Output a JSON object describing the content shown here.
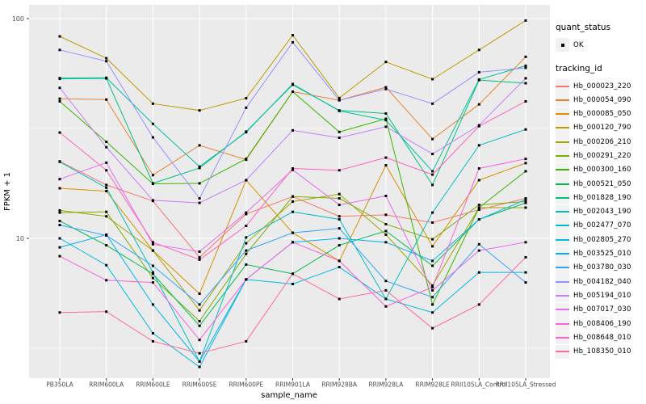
{
  "legend": {
    "quant_status": {
      "title": "quant_status",
      "items": [
        {
          "label": "OK",
          "marker": "black-square"
        }
      ]
    },
    "tracking": {
      "title": "tracking_id"
    }
  },
  "chart_data": {
    "type": "line",
    "title": "",
    "xlabel": "sample_name",
    "ylabel": "FPKM + 1",
    "y_scale": "log10",
    "ylim": [
      2.3,
      116
    ],
    "grid": true,
    "legend_position": "right",
    "panel_bg": "#EBEBEB",
    "gridline_color": "#FFFFFF",
    "tick_text_color": "#4D4D4D",
    "point_marker": {
      "shape": "square",
      "color": "#000000"
    },
    "y_ticks": [
      {
        "value": 100,
        "label": "100"
      },
      {
        "value": 10,
        "label": "10"
      }
    ],
    "y_minor_gridlines": [
      3.1623,
      31.623
    ],
    "categories": [
      "PB350LA",
      "RRIM600LA",
      "RRIM600LE",
      "RRIM600SE",
      "RRIM600PE",
      "RRIM901LA",
      "RRIM928BA",
      "RRIM928LA",
      "RRIM928LE",
      "RRII105LA_Control",
      "RRII105LA_Stressed"
    ],
    "series": [
      {
        "name": "Hb_000023_220",
        "color": "#F8766D",
        "values": [
          22.4,
          17.5,
          14.8,
          8.2,
          12.9,
          15.5,
          12.6,
          12.8,
          11.8,
          13.5,
          15.2
        ]
      },
      {
        "name": "Hb_000054_090",
        "color": "#EA8331",
        "values": [
          43.2,
          42.8,
          19.4,
          26.5,
          22.8,
          46.5,
          42.5,
          48.7,
          28.3,
          40.7,
          67
        ]
      },
      {
        "name": "Hb_000085_050",
        "color": "#D89000",
        "values": [
          16.9,
          16.4,
          8.8,
          5.6,
          18.4,
          10.6,
          7.9,
          21.5,
          9.2,
          18.4,
          22
        ]
      },
      {
        "name": "Hb_000120_790",
        "color": "#C09B00",
        "values": [
          83,
          66,
          41,
          38.2,
          43.4,
          84,
          43.5,
          63.5,
          53,
          72,
          98
        ]
      },
      {
        "name": "Hb_000206_210",
        "color": "#A3A500",
        "values": [
          13.4,
          12.6,
          8.8,
          4.7,
          9.5,
          14.7,
          15.9,
          10.4,
          6.1,
          13.8,
          13.8
        ]
      },
      {
        "name": "Hb_000291_220",
        "color": "#7CAE00",
        "values": [
          13.1,
          13.2,
          6.6,
          4.2,
          8.5,
          15.5,
          15.2,
          11.6,
          9.9,
          14.2,
          14.7
        ]
      },
      {
        "name": "Hb_000300_160",
        "color": "#39B600",
        "values": [
          42,
          27.5,
          17.7,
          17.8,
          23,
          46.5,
          30.5,
          35,
          5.0,
          13.8,
          20.2
        ]
      },
      {
        "name": "Hb_000521_050",
        "color": "#00BB4E",
        "values": [
          12,
          9.3,
          6.9,
          4.0,
          7.6,
          6.9,
          9.3,
          10.8,
          7.5,
          12.2,
          14.5
        ]
      },
      {
        "name": "Hb_001828_190",
        "color": "#00BF7D",
        "values": [
          53.2,
          53.4,
          17.8,
          20.9,
          30.6,
          50,
          38.2,
          37,
          17.5,
          52.5,
          50.8
        ]
      },
      {
        "name": "Hb_002043_190",
        "color": "#00C1A3",
        "values": [
          53.6,
          53.8,
          33.2,
          21.2,
          30.4,
          50.4,
          38,
          34.5,
          20.2,
          52.8,
          61
        ]
      },
      {
        "name": "Hb_002477_070",
        "color": "#00BFC4",
        "values": [
          22.3,
          17,
          7.0,
          2.75,
          10.1,
          13.2,
          12.2,
          5.3,
          13.1,
          26.5,
          31.3
        ]
      },
      {
        "name": "Hb_002805_270",
        "color": "#00BAE0",
        "values": [
          10,
          7.55,
          3.7,
          2.6,
          6.5,
          6.2,
          7.4,
          5.3,
          4.6,
          7.0,
          7.0
        ]
      },
      {
        "name": "Hb_003525_010",
        "color": "#00B0F6",
        "values": [
          9.1,
          10.4,
          5.0,
          2.75,
          6.5,
          9.6,
          10.0,
          9.6,
          7.9,
          12.2,
          15.0
        ]
      },
      {
        "name": "Hb_003780_030",
        "color": "#35A2FF",
        "values": [
          11.5,
          10.3,
          7.5,
          5.0,
          8.8,
          10.6,
          11.1,
          6.4,
          5.4,
          9.4,
          6.3
        ]
      },
      {
        "name": "Hb_004182_040",
        "color": "#9590FF",
        "values": [
          72,
          64,
          28.8,
          15.2,
          39.3,
          78,
          42.5,
          47.8,
          41,
          57,
          59.7
        ]
      },
      {
        "name": "Hb_005194_010",
        "color": "#C77CFF",
        "values": [
          48.4,
          26,
          14.9,
          14.5,
          18.4,
          31,
          28.7,
          32.2,
          24.2,
          32.7,
          53.5
        ]
      },
      {
        "name": "Hb_007017_030",
        "color": "#E76BF3",
        "values": [
          18.6,
          22.1,
          9.4,
          8.7,
          13.1,
          20.5,
          14.2,
          15.6,
          5.8,
          8.8,
          9.6
        ]
      },
      {
        "name": "Hb_008406_190",
        "color": "#FA62DB",
        "values": [
          8.3,
          6.45,
          6.3,
          3.45,
          6.5,
          9.6,
          7.9,
          4.9,
          6.0,
          20.8,
          23
        ]
      },
      {
        "name": "Hb_008648_010",
        "color": "#FF62BC",
        "values": [
          30.3,
          20.4,
          9.6,
          8.0,
          11.4,
          20.8,
          20.4,
          23.3,
          19.5,
          32.4,
          42
        ]
      },
      {
        "name": "Hb_108350_010",
        "color": "#FF6A98",
        "values": [
          4.6,
          4.64,
          3.4,
          3.0,
          3.4,
          6.9,
          5.3,
          5.8,
          3.9,
          5.0,
          8.2
        ]
      }
    ]
  }
}
